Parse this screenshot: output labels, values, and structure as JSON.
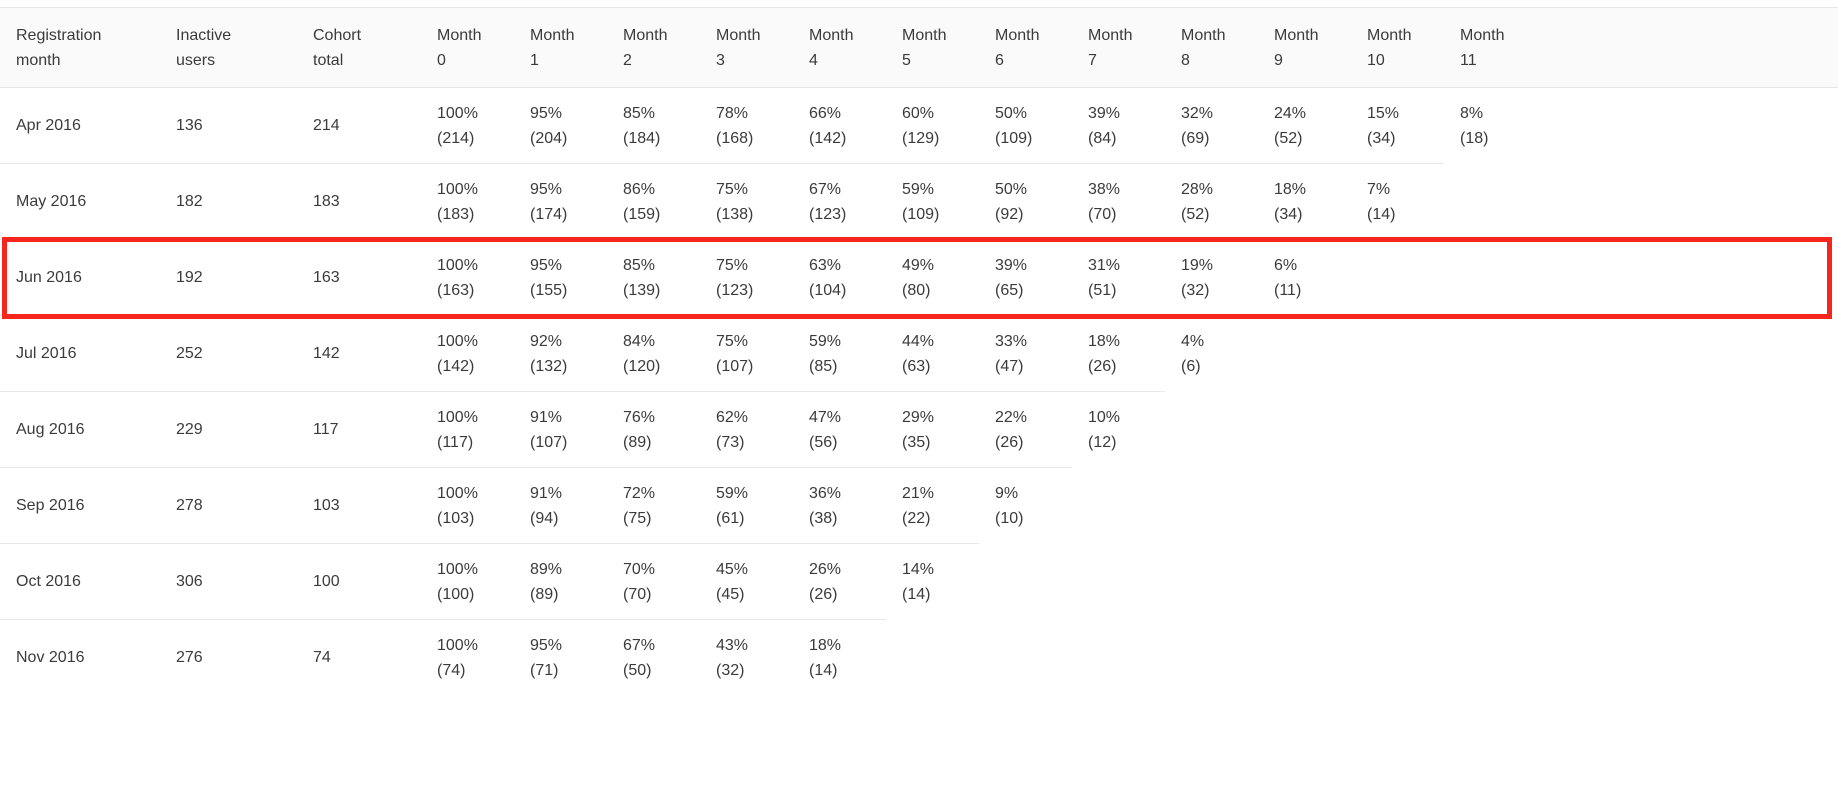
{
  "table": {
    "columns": [
      {
        "line1": "Registration",
        "line2": "month"
      },
      {
        "line1": "Inactive",
        "line2": "users"
      },
      {
        "line1": "Cohort",
        "line2": "total"
      },
      {
        "line1": "Month",
        "line2": "0"
      },
      {
        "line1": "Month",
        "line2": "1"
      },
      {
        "line1": "Month",
        "line2": "2"
      },
      {
        "line1": "Month",
        "line2": "3"
      },
      {
        "line1": "Month",
        "line2": "4"
      },
      {
        "line1": "Month",
        "line2": "5"
      },
      {
        "line1": "Month",
        "line2": "6"
      },
      {
        "line1": "Month",
        "line2": "7"
      },
      {
        "line1": "Month",
        "line2": "8"
      },
      {
        "line1": "Month",
        "line2": "9"
      },
      {
        "line1": "Month",
        "line2": "10"
      },
      {
        "line1": "Month",
        "line2": "11"
      }
    ],
    "rows": [
      {
        "month": "Apr 2016",
        "inactive": "136",
        "total": "214",
        "highlighted": false,
        "cells": [
          {
            "pct": "100%",
            "count": "(214)"
          },
          {
            "pct": "95%",
            "count": "(204)"
          },
          {
            "pct": "85%",
            "count": "(184)"
          },
          {
            "pct": "78%",
            "count": "(168)"
          },
          {
            "pct": "66%",
            "count": "(142)"
          },
          {
            "pct": "60%",
            "count": "(129)"
          },
          {
            "pct": "50%",
            "count": "(109)"
          },
          {
            "pct": "39%",
            "count": "(84)"
          },
          {
            "pct": "32%",
            "count": "(69)"
          },
          {
            "pct": "24%",
            "count": "(52)"
          },
          {
            "pct": "15%",
            "count": "(34)"
          },
          {
            "pct": "8%",
            "count": "(18)"
          }
        ]
      },
      {
        "month": "May 2016",
        "inactive": "182",
        "total": "183",
        "highlighted": false,
        "cells": [
          {
            "pct": "100%",
            "count": "(183)"
          },
          {
            "pct": "95%",
            "count": "(174)"
          },
          {
            "pct": "86%",
            "count": "(159)"
          },
          {
            "pct": "75%",
            "count": "(138)"
          },
          {
            "pct": "67%",
            "count": "(123)"
          },
          {
            "pct": "59%",
            "count": "(109)"
          },
          {
            "pct": "50%",
            "count": "(92)"
          },
          {
            "pct": "38%",
            "count": "(70)"
          },
          {
            "pct": "28%",
            "count": "(52)"
          },
          {
            "pct": "18%",
            "count": "(34)"
          },
          {
            "pct": "7%",
            "count": "(14)"
          }
        ]
      },
      {
        "month": "Jun 2016",
        "inactive": "192",
        "total": "163",
        "highlighted": true,
        "cells": [
          {
            "pct": "100%",
            "count": "(163)"
          },
          {
            "pct": "95%",
            "count": "(155)"
          },
          {
            "pct": "85%",
            "count": "(139)"
          },
          {
            "pct": "75%",
            "count": "(123)"
          },
          {
            "pct": "63%",
            "count": "(104)"
          },
          {
            "pct": "49%",
            "count": "(80)"
          },
          {
            "pct": "39%",
            "count": "(65)"
          },
          {
            "pct": "31%",
            "count": "(51)"
          },
          {
            "pct": "19%",
            "count": "(32)"
          },
          {
            "pct": "6%",
            "count": "(11)"
          }
        ]
      },
      {
        "month": "Jul 2016",
        "inactive": "252",
        "total": "142",
        "highlighted": false,
        "cells": [
          {
            "pct": "100%",
            "count": "(142)"
          },
          {
            "pct": "92%",
            "count": "(132)"
          },
          {
            "pct": "84%",
            "count": "(120)"
          },
          {
            "pct": "75%",
            "count": "(107)"
          },
          {
            "pct": "59%",
            "count": "(85)"
          },
          {
            "pct": "44%",
            "count": "(63)"
          },
          {
            "pct": "33%",
            "count": "(47)"
          },
          {
            "pct": "18%",
            "count": "(26)"
          },
          {
            "pct": "4%",
            "count": "(6)"
          }
        ]
      },
      {
        "month": "Aug 2016",
        "inactive": "229",
        "total": "117",
        "highlighted": false,
        "cells": [
          {
            "pct": "100%",
            "count": "(117)"
          },
          {
            "pct": "91%",
            "count": "(107)"
          },
          {
            "pct": "76%",
            "count": "(89)"
          },
          {
            "pct": "62%",
            "count": "(73)"
          },
          {
            "pct": "47%",
            "count": "(56)"
          },
          {
            "pct": "29%",
            "count": "(35)"
          },
          {
            "pct": "22%",
            "count": "(26)"
          },
          {
            "pct": "10%",
            "count": "(12)"
          }
        ]
      },
      {
        "month": "Sep 2016",
        "inactive": "278",
        "total": "103",
        "highlighted": false,
        "cells": [
          {
            "pct": "100%",
            "count": "(103)"
          },
          {
            "pct": "91%",
            "count": "(94)"
          },
          {
            "pct": "72%",
            "count": "(75)"
          },
          {
            "pct": "59%",
            "count": "(61)"
          },
          {
            "pct": "36%",
            "count": "(38)"
          },
          {
            "pct": "21%",
            "count": "(22)"
          },
          {
            "pct": "9%",
            "count": "(10)"
          }
        ]
      },
      {
        "month": "Oct 2016",
        "inactive": "306",
        "total": "100",
        "highlighted": false,
        "cells": [
          {
            "pct": "100%",
            "count": "(100)"
          },
          {
            "pct": "89%",
            "count": "(89)"
          },
          {
            "pct": "70%",
            "count": "(70)"
          },
          {
            "pct": "45%",
            "count": "(45)"
          },
          {
            "pct": "26%",
            "count": "(26)"
          },
          {
            "pct": "14%",
            "count": "(14)"
          }
        ]
      },
      {
        "month": "Nov 2016",
        "inactive": "276",
        "total": "74",
        "highlighted": false,
        "cells": [
          {
            "pct": "100%",
            "count": "(74)"
          },
          {
            "pct": "95%",
            "count": "(71)"
          },
          {
            "pct": "67%",
            "count": "(50)"
          },
          {
            "pct": "43%",
            "count": "(32)"
          },
          {
            "pct": "18%",
            "count": "(14)"
          }
        ]
      }
    ]
  },
  "colors": {
    "highlight_border": "#f5261d",
    "row_border": "#e7e7e7",
    "header_background": "#fafafa",
    "text": "#3b3b3b"
  }
}
